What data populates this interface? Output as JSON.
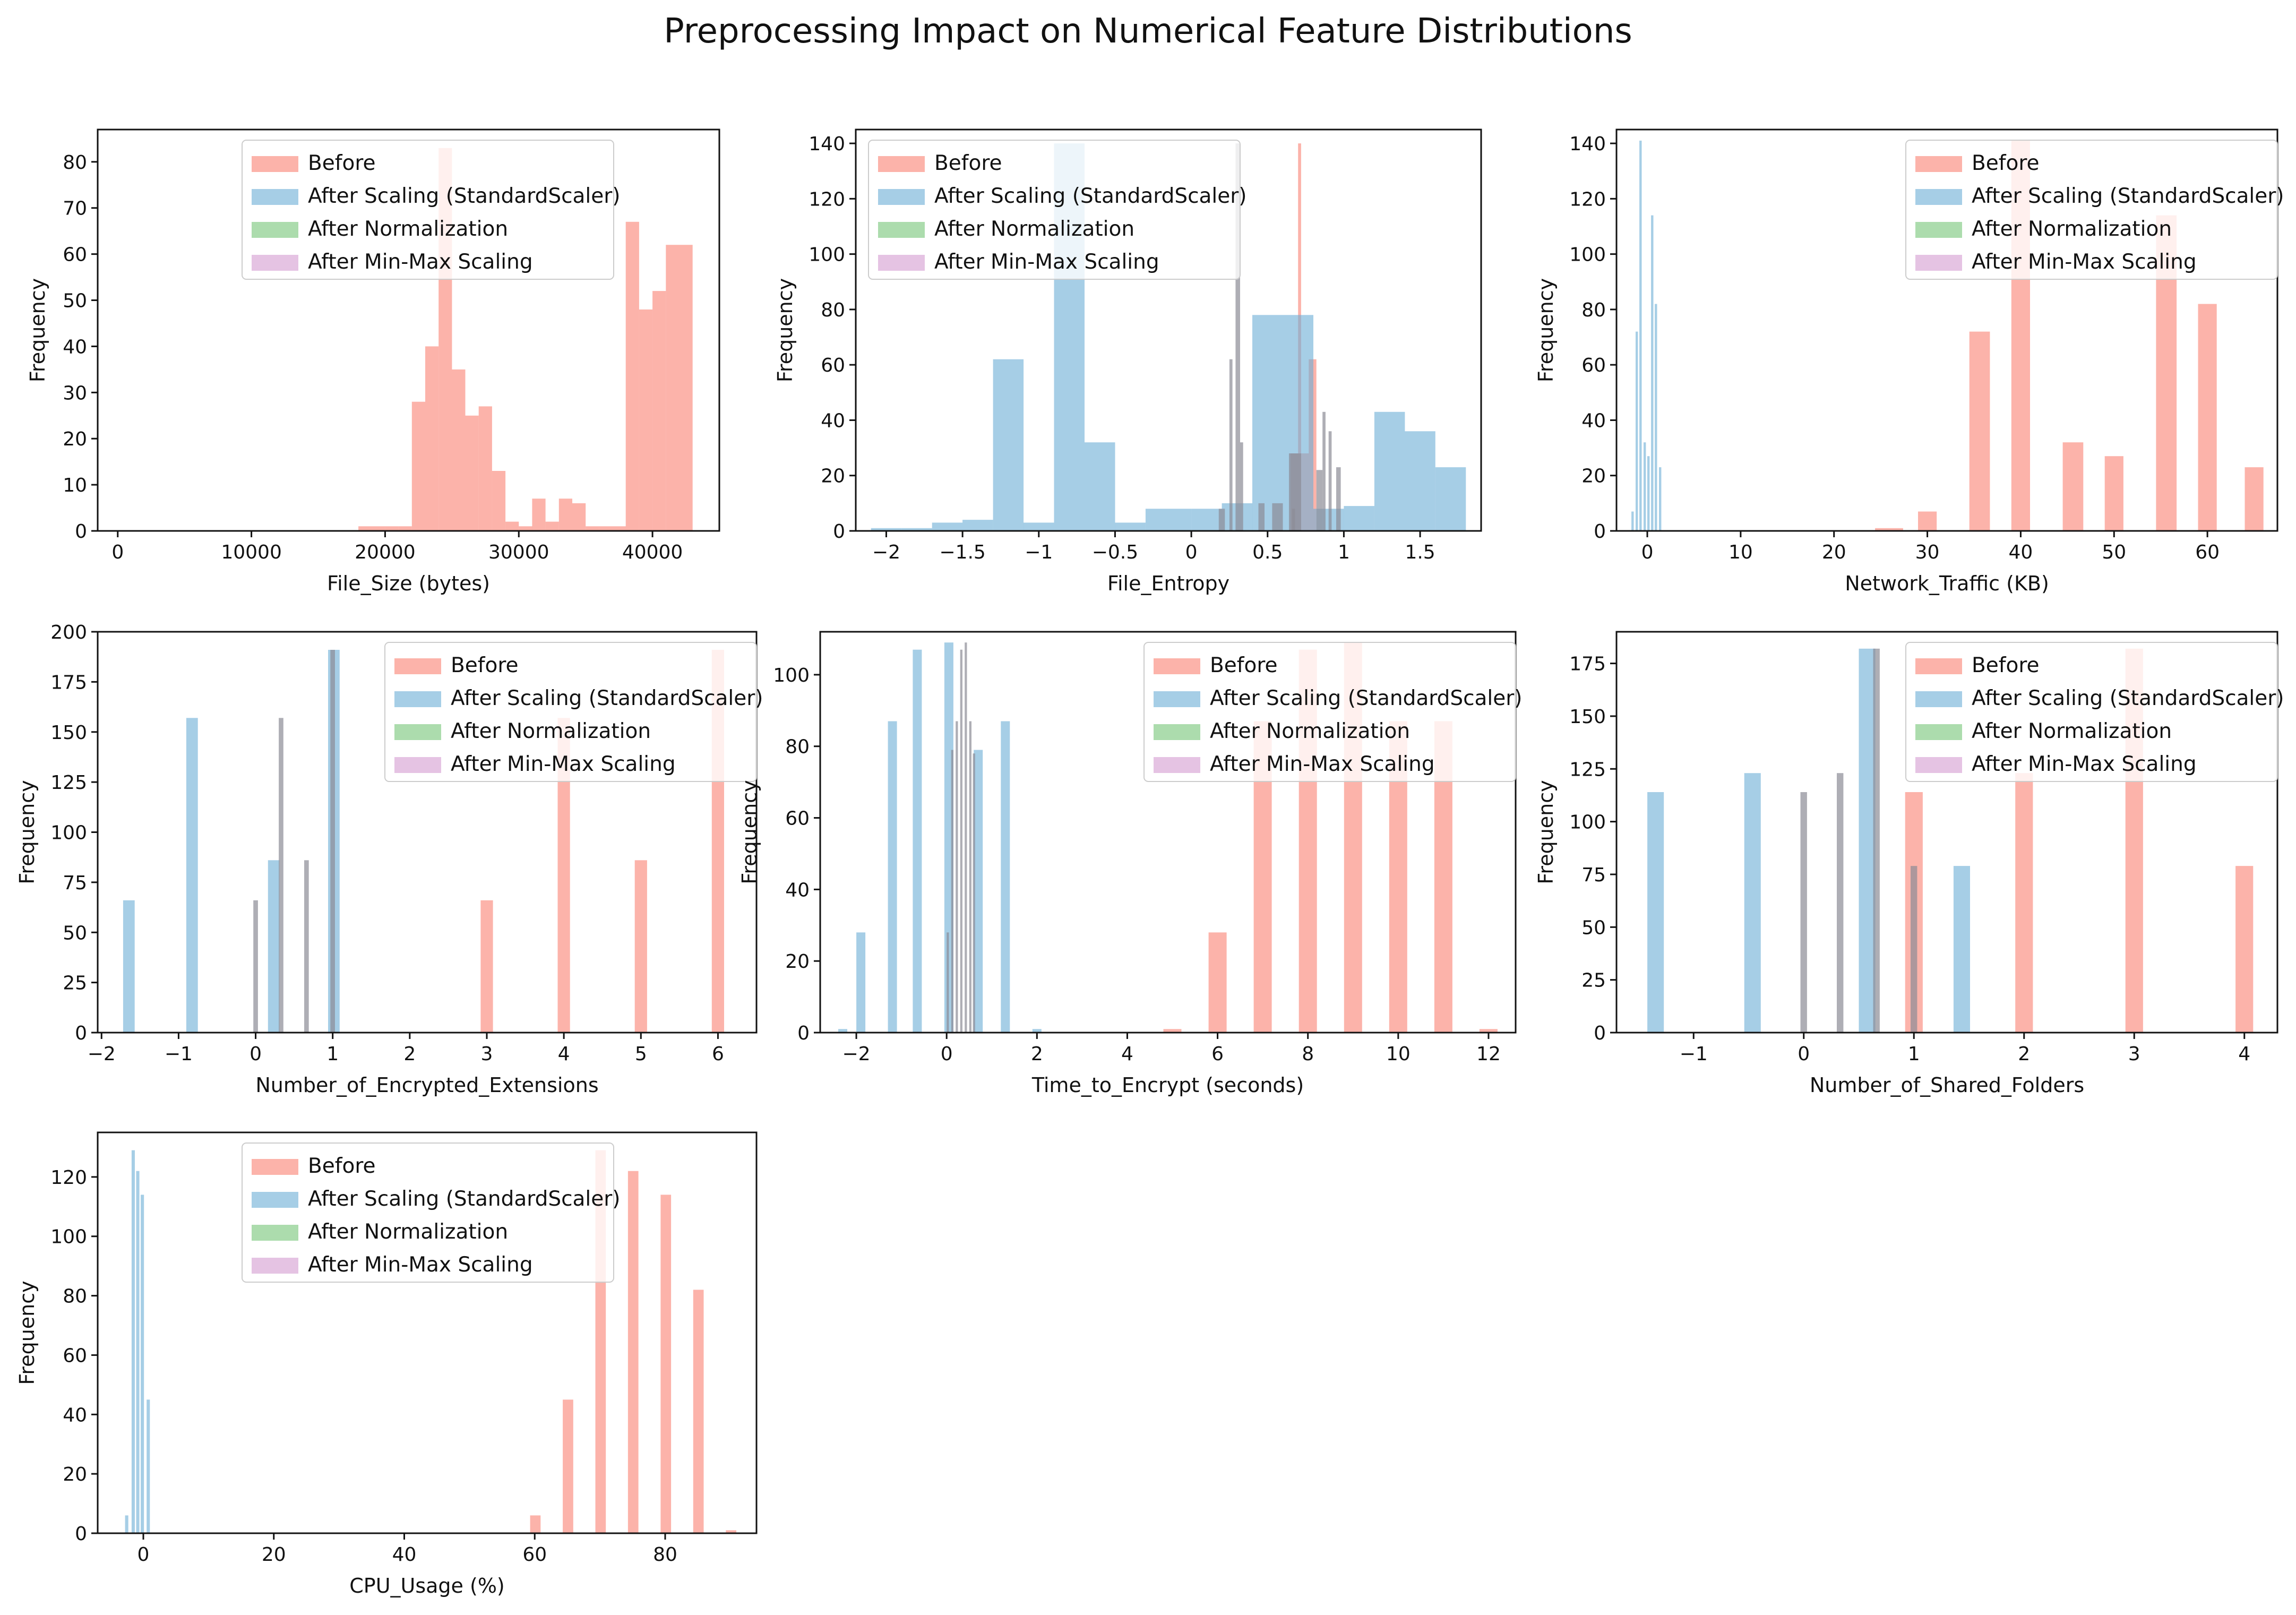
{
  "title": "Preprocessing Impact on Numerical Feature Distributions",
  "legend_labels": [
    "Before",
    "After Scaling (StandardScaler)",
    "After Normalization",
    "After Min-Max Scaling"
  ],
  "colors": {
    "before": "#fa8072",
    "scaled": "#6baed6",
    "normalized": "#74c476",
    "minmax": "#d39bd0",
    "overlap": "#8c8c96"
  },
  "chart_data": [
    {
      "type": "bar",
      "subtype": "histogram",
      "xlabel": "File_Size (bytes)",
      "ylabel": "Frequency",
      "xlim": [
        -1500,
        45000
      ],
      "ylim": [
        0,
        87
      ],
      "xticks": [
        0,
        10000,
        20000,
        30000,
        40000
      ],
      "yticks": [
        0,
        10,
        20,
        30,
        40,
        50,
        60,
        70,
        80
      ],
      "legend": "top-center",
      "series": [
        {
          "name": "Before",
          "bins": [
            [
              18000,
              19000,
              1
            ],
            [
              19000,
              20000,
              1
            ],
            [
              20000,
              21000,
              1
            ],
            [
              21000,
              22000,
              1
            ],
            [
              22000,
              23000,
              28
            ],
            [
              23000,
              24000,
              40
            ],
            [
              24000,
              25000,
              83
            ],
            [
              25000,
              26000,
              35
            ],
            [
              26000,
              27000,
              25
            ],
            [
              27000,
              28000,
              27
            ],
            [
              28000,
              29000,
              13
            ],
            [
              29000,
              30000,
              2
            ],
            [
              30000,
              31000,
              1
            ],
            [
              31000,
              32000,
              7
            ],
            [
              32000,
              33000,
              2
            ],
            [
              33000,
              34000,
              7
            ],
            [
              34000,
              35000,
              6
            ],
            [
              35000,
              36000,
              1
            ],
            [
              36000,
              38000,
              1
            ],
            [
              38000,
              39000,
              67
            ],
            [
              39000,
              40000,
              48
            ],
            [
              40000,
              41000,
              52
            ],
            [
              41000,
              42000,
              62
            ],
            [
              42000,
              43000,
              62
            ]
          ]
        }
      ]
    },
    {
      "type": "bar",
      "subtype": "histogram",
      "xlabel": "File_Entropy",
      "ylabel": "Frequency",
      "xlim": [
        -2.2,
        1.9
      ],
      "ylim": [
        0,
        145
      ],
      "xticks": [
        -2.0,
        -1.5,
        -1.0,
        -0.5,
        0.0,
        0.5,
        1.0,
        1.5
      ],
      "yticks": [
        0,
        20,
        40,
        60,
        80,
        100,
        120,
        140
      ],
      "legend": "top-left",
      "series": [
        {
          "name": "Before",
          "bins": [
            [
              0.65,
              0.7,
              28
            ],
            [
              0.7,
              0.72,
              140
            ],
            [
              0.72,
              0.77,
              28
            ],
            [
              0.77,
              0.82,
              62
            ]
          ]
        },
        {
          "name": "After Scaling (StandardScaler)",
          "bins": [
            [
              -2.1,
              -1.9,
              1
            ],
            [
              -1.9,
              -1.7,
              1
            ],
            [
              -1.7,
              -1.5,
              3
            ],
            [
              -1.5,
              -1.3,
              4
            ],
            [
              -1.3,
              -1.1,
              62
            ],
            [
              -1.1,
              -0.9,
              3
            ],
            [
              -0.9,
              -0.7,
              140
            ],
            [
              -0.7,
              -0.5,
              32
            ],
            [
              -0.5,
              -0.3,
              3
            ],
            [
              -0.3,
              0.0,
              8
            ],
            [
              0.0,
              0.2,
              8
            ],
            [
              0.2,
              0.4,
              10
            ],
            [
              0.4,
              0.6,
              78
            ],
            [
              0.6,
              0.8,
              78
            ],
            [
              0.8,
              1.0,
              8
            ],
            [
              1.0,
              1.2,
              9
            ],
            [
              1.2,
              1.4,
              43
            ],
            [
              1.4,
              1.6,
              36
            ],
            [
              1.6,
              1.8,
              23
            ]
          ]
        },
        {
          "name": "After Normalization",
          "bins": [
            [
              0.25,
              0.27,
              62
            ],
            [
              0.29,
              0.32,
              140
            ],
            [
              0.32,
              0.34,
              32
            ],
            [
              0.66,
              0.68,
              8
            ],
            [
              0.86,
              0.88,
              43
            ],
            [
              0.9,
              0.92,
              36
            ],
            [
              0.95,
              0.98,
              23
            ]
          ]
        },
        {
          "name": "After Min-Max Scaling",
          "bins": [
            [
              0.18,
              0.22,
              8
            ],
            [
              0.44,
              0.48,
              10
            ],
            [
              0.53,
              0.6,
              10
            ],
            [
              0.64,
              0.72,
              28
            ],
            [
              0.82,
              0.86,
              22
            ]
          ]
        }
      ]
    },
    {
      "type": "bar",
      "subtype": "histogram",
      "xlabel": "Network_Traffic (KB)",
      "ylabel": "Frequency",
      "xlim": [
        -3.3,
        67.5
      ],
      "ylim": [
        0,
        145
      ],
      "xticks": [
        0,
        10,
        20,
        30,
        40,
        50,
        60
      ],
      "yticks": [
        0,
        20,
        40,
        60,
        80,
        100,
        120,
        140
      ],
      "legend": "top-right",
      "series": [
        {
          "name": "Before",
          "bins": [
            [
              24.4,
              27.4,
              1
            ],
            [
              29,
              31,
              7
            ],
            [
              34.5,
              36.7,
              72
            ],
            [
              39,
              41,
              141
            ],
            [
              44.5,
              46.7,
              32
            ],
            [
              49,
              51,
              27
            ],
            [
              54.5,
              56.7,
              114
            ],
            [
              59,
              61,
              82
            ],
            [
              64,
              66,
              23
            ]
          ]
        },
        {
          "name": "After Scaling (StandardScaler)",
          "bins": [
            [
              -1.7,
              -1.45,
              7
            ],
            [
              -1.25,
              -1.0,
              72
            ],
            [
              -0.85,
              -0.6,
              141
            ],
            [
              -0.4,
              -0.15,
              32
            ],
            [
              0.0,
              0.25,
              27
            ],
            [
              0.4,
              0.65,
              114
            ],
            [
              0.8,
              1.05,
              82
            ],
            [
              1.25,
              1.5,
              23
            ]
          ]
        }
      ]
    },
    {
      "type": "bar",
      "subtype": "histogram",
      "xlabel": "Number_of_Encrypted_Extensions",
      "ylabel": "Frequency",
      "xlim": [
        -2.05,
        6.5
      ],
      "ylim": [
        0,
        200
      ],
      "xticks": [
        -2,
        -1,
        0,
        1,
        2,
        3,
        4,
        5,
        6
      ],
      "yticks": [
        0,
        25,
        50,
        75,
        100,
        125,
        150,
        175,
        200
      ],
      "legend": "top-right",
      "series": [
        {
          "name": "Before",
          "bins": [
            [
              2.92,
              3.08,
              66
            ],
            [
              3.92,
              4.08,
              157
            ],
            [
              4.92,
              5.08,
              86
            ],
            [
              5.92,
              6.08,
              191
            ]
          ]
        },
        {
          "name": "After Scaling (StandardScaler)",
          "bins": [
            [
              -1.72,
              -1.57,
              66
            ],
            [
              -0.9,
              -0.75,
              157
            ],
            [
              0.16,
              0.31,
              86
            ],
            [
              0.94,
              1.09,
              191
            ]
          ]
        },
        {
          "name": "After Normalization",
          "bins": [
            [
              -0.03,
              0.03,
              66
            ],
            [
              0.3,
              0.36,
              157
            ],
            [
              0.63,
              0.69,
              86
            ],
            [
              0.97,
              1.03,
              191
            ]
          ]
        }
      ]
    },
    {
      "type": "bar",
      "subtype": "histogram",
      "xlabel": "Time_to_Encrypt (seconds)",
      "ylabel": "Frequency",
      "xlim": [
        -2.8,
        12.6
      ],
      "ylim": [
        0,
        112
      ],
      "xticks": [
        -2,
        0,
        2,
        4,
        6,
        8,
        10,
        12
      ],
      "yticks": [
        0,
        20,
        40,
        60,
        80,
        100
      ],
      "legend": "top-right",
      "series": [
        {
          "name": "Before",
          "bins": [
            [
              4.8,
              5.2,
              1
            ],
            [
              5.8,
              6.2,
              28
            ],
            [
              6.8,
              7.2,
              87
            ],
            [
              7.8,
              8.2,
              107
            ],
            [
              8.8,
              9.2,
              109
            ],
            [
              9.8,
              10.2,
              87
            ],
            [
              10.8,
              11.2,
              87
            ],
            [
              11.8,
              12.2,
              1
            ]
          ]
        },
        {
          "name": "After Scaling (StandardScaler)",
          "bins": [
            [
              -2.4,
              -2.2,
              1
            ],
            [
              -2.0,
              -1.8,
              28
            ],
            [
              -1.3,
              -1.1,
              87
            ],
            [
              -0.75,
              -0.55,
              107
            ],
            [
              -0.05,
              0.15,
              109
            ],
            [
              0.6,
              0.8,
              79
            ],
            [
              1.2,
              1.4,
              87
            ],
            [
              1.9,
              2.1,
              1
            ]
          ]
        },
        {
          "name": "After Normalization",
          "bins": [
            [
              0.0,
              0.05,
              28
            ],
            [
              0.1,
              0.15,
              79
            ],
            [
              0.2,
              0.25,
              87
            ],
            [
              0.3,
              0.35,
              107
            ],
            [
              0.4,
              0.45,
              109
            ],
            [
              0.5,
              0.55,
              87
            ],
            [
              0.58,
              0.63,
              78
            ]
          ]
        }
      ]
    },
    {
      "type": "bar",
      "subtype": "histogram",
      "xlabel": "Number_of_Shared_Folders",
      "ylabel": "Frequency",
      "xlim": [
        -1.7,
        4.3
      ],
      "ylim": [
        0,
        190
      ],
      "xticks": [
        -1,
        0,
        1,
        2,
        3,
        4
      ],
      "yticks": [
        0,
        25,
        50,
        75,
        100,
        125,
        150,
        175
      ],
      "legend": "top-right",
      "series": [
        {
          "name": "Before",
          "bins": [
            [
              0.92,
              1.08,
              114
            ],
            [
              1.92,
              2.08,
              123
            ],
            [
              2.92,
              3.08,
              182
            ],
            [
              3.92,
              4.08,
              79
            ]
          ]
        },
        {
          "name": "After Scaling (StandardScaler)",
          "bins": [
            [
              -1.42,
              -1.27,
              114
            ],
            [
              -0.54,
              -0.39,
              123
            ],
            [
              0.5,
              0.65,
              182
            ],
            [
              1.36,
              1.51,
              79
            ]
          ]
        },
        {
          "name": "After Normalization",
          "bins": [
            [
              -0.03,
              0.03,
              114
            ],
            [
              0.3,
              0.36,
              123
            ],
            [
              0.63,
              0.69,
              182
            ],
            [
              0.97,
              1.03,
              79
            ]
          ]
        }
      ]
    },
    {
      "type": "bar",
      "subtype": "histogram",
      "xlabel": "CPU_Usage (%)",
      "ylabel": "Frequency",
      "xlim": [
        -7,
        94
      ],
      "ylim": [
        0,
        135
      ],
      "xticks": [
        0,
        20,
        40,
        60,
        80
      ],
      "yticks": [
        0,
        20,
        40,
        60,
        80,
        100,
        120
      ],
      "legend": "top-center",
      "series": [
        {
          "name": "Before",
          "bins": [
            [
              59.3,
              60.9,
              6
            ],
            [
              64.3,
              65.9,
              45
            ],
            [
              69.3,
              70.9,
              129
            ],
            [
              74.3,
              75.9,
              122
            ],
            [
              79.3,
              80.9,
              114
            ],
            [
              84.3,
              85.9,
              82
            ],
            [
              89.3,
              90.9,
              1
            ]
          ]
        },
        {
          "name": "After Scaling (StandardScaler)",
          "bins": [
            [
              -2.8,
              -2.3,
              6
            ],
            [
              -1.8,
              -1.3,
              129
            ],
            [
              -1.1,
              -0.6,
              122
            ],
            [
              -0.4,
              0.1,
              114
            ],
            [
              0.5,
              1.0,
              45
            ]
          ]
        }
      ]
    }
  ]
}
